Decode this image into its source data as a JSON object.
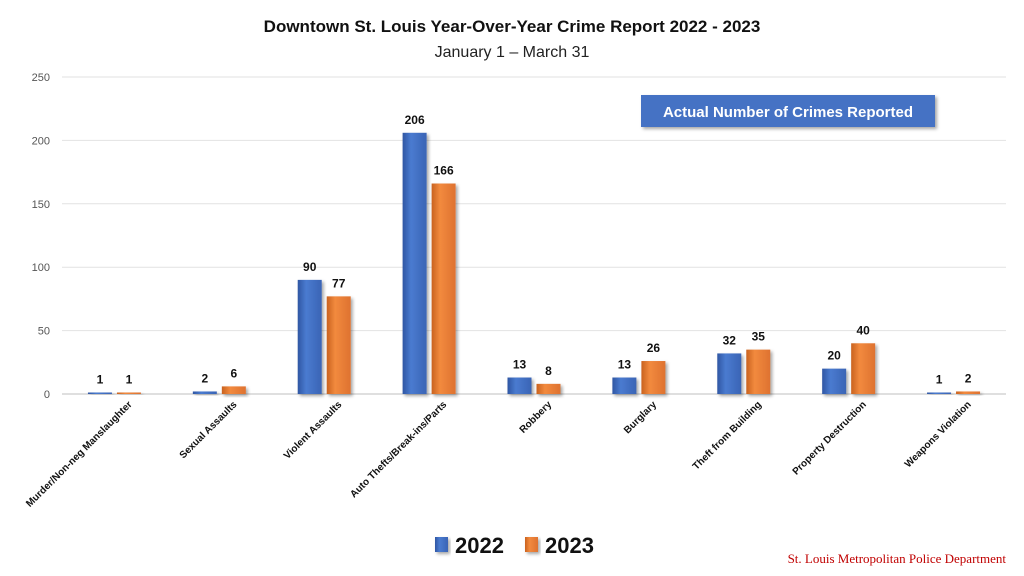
{
  "chart_data": {
    "type": "bar",
    "title": "Downtown St. Louis Year-Over-Year Crime Report 2022 - 2023",
    "subtitle": "January 1 – March 31",
    "annotation": "Actual Number of Crimes Reported",
    "credit": "St. Louis Metropolitan Police Department",
    "categories": [
      "Murder/Non-neg Manslaughter",
      "Sexual Assaults",
      "Violent Assaults",
      "Auto Thefts/Break-ins/Parts",
      "Robbery",
      "Burglary",
      "Theft from Building",
      "Property Destruction",
      "Weapons Violation"
    ],
    "series": [
      {
        "name": "2022",
        "values": [
          1,
          2,
          90,
          206,
          13,
          13,
          32,
          20,
          1
        ],
        "color": "#4472c4"
      },
      {
        "name": "2023",
        "values": [
          1,
          6,
          77,
          166,
          8,
          26,
          35,
          40,
          2
        ],
        "color": "#ed7d31"
      }
    ],
    "ylim": [
      0,
      250
    ],
    "yticks": [
      0,
      50,
      100,
      150,
      200,
      250
    ],
    "grid": true,
    "legend_position": "bottom-center"
  }
}
